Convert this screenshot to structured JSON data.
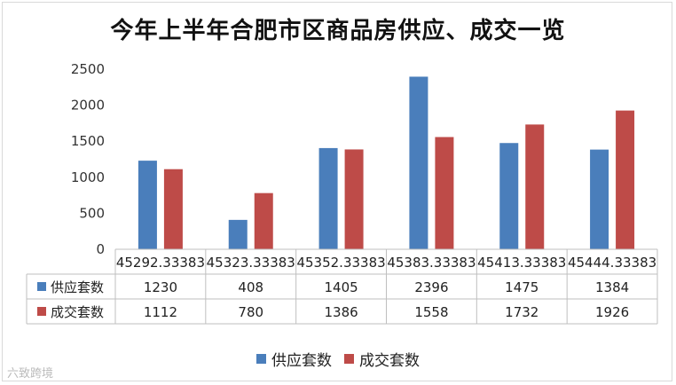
{
  "chart_data": {
    "type": "bar",
    "title": "今年上半年合肥市区商品房供应、成交一览",
    "categories": [
      "45292.33383",
      "45323.33383",
      "45352.33383",
      "45383.33383",
      "45413.33383",
      "45444.33383"
    ],
    "series": [
      {
        "name": "供应套数",
        "values": [
          1230,
          408,
          1405,
          2396,
          1475,
          1384
        ],
        "color": "#4a7ebb"
      },
      {
        "name": "成交套数",
        "values": [
          1112,
          780,
          1386,
          1558,
          1732,
          1926
        ],
        "color": "#be4b48"
      }
    ],
    "ylim": [
      0,
      2500
    ],
    "yticks": [
      "0",
      "500",
      "1000",
      "1500",
      "2000",
      "2500"
    ],
    "grid": false,
    "legend_position": "bottom",
    "data_table": true
  },
  "watermark": "六致跨境"
}
